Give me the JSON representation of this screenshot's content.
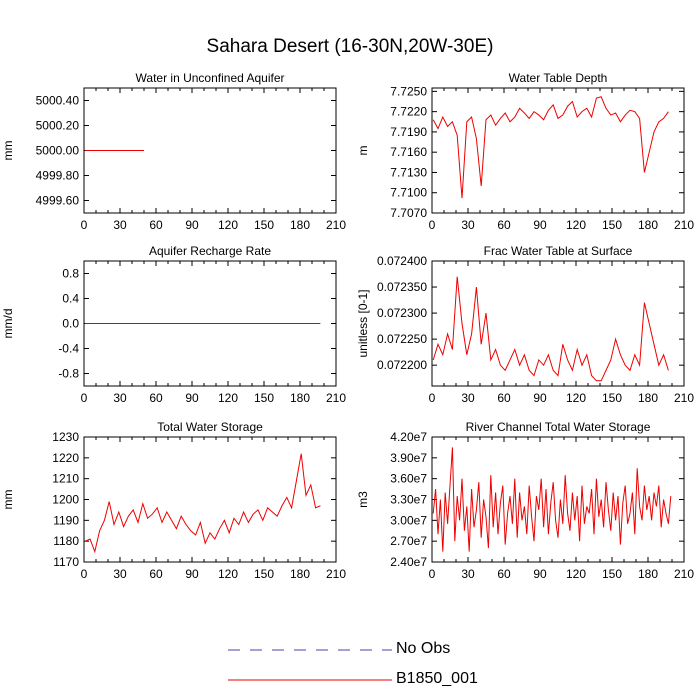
{
  "title": "Sahara Desert (16-30N,20W-30E)",
  "legend": [
    {
      "name": "No Obs",
      "color": "#4444aa",
      "dash": true
    },
    {
      "name": "B1850_001",
      "color": "#ee0000",
      "dash": false
    }
  ],
  "chart_data": [
    {
      "type": "line",
      "title": "Water in Unconfined Aquifer",
      "ylabel": "mm",
      "xlim": [
        0,
        210
      ],
      "xticks": [
        0,
        30,
        60,
        90,
        120,
        150,
        180,
        210
      ],
      "ylim": [
        4999.5,
        5000.5
      ],
      "yticks": [
        4999.6,
        4999.8,
        5000.0,
        5000.2,
        5000.4
      ],
      "ytick_labels": [
        "4999.60",
        "4999.80",
        "5000.00",
        "5000.20",
        "5000.40"
      ],
      "series": [
        {
          "color": "#ee0000",
          "x_start": 1,
          "x_step": 1,
          "values": [
            5000,
            5000,
            5000,
            5000,
            5000,
            5000,
            5000,
            5000,
            5000,
            5000,
            5000,
            5000,
            5000,
            5000,
            5000,
            5000,
            5000,
            5000,
            5000,
            5000,
            5000,
            5000,
            5000,
            5000,
            5000,
            5000,
            5000,
            5000,
            5000,
            5000,
            5000,
            5000,
            5000,
            5000,
            5000,
            5000,
            5000,
            5000,
            5000,
            5000,
            5000,
            5000,
            5000,
            5000,
            5000,
            5000,
            5000,
            5000,
            5000,
            5000
          ]
        }
      ]
    },
    {
      "type": "line",
      "title": "Water Table Depth",
      "ylabel": "m",
      "xlim": [
        0,
        210
      ],
      "xticks": [
        0,
        30,
        60,
        90,
        120,
        150,
        180,
        210
      ],
      "ylim": [
        7.707,
        7.7255
      ],
      "yticks": [
        7.707,
        7.71,
        7.713,
        7.716,
        7.719,
        7.722,
        7.725
      ],
      "ytick_labels": [
        "7.7070",
        "7.7100",
        "7.7130",
        "7.7160",
        "7.7190",
        "7.7220",
        "7.7250"
      ],
      "series": [
        {
          "color": "#ee0000",
          "x_start": 1,
          "x_step": 4,
          "values": [
            7.7208,
            7.7195,
            7.7212,
            7.7198,
            7.7205,
            7.7185,
            7.7092,
            7.7205,
            7.7212,
            7.718,
            7.711,
            7.7208,
            7.7215,
            7.72,
            7.721,
            7.7218,
            7.7205,
            7.7212,
            7.7225,
            7.7218,
            7.721,
            7.722,
            7.7215,
            7.7208,
            7.7222,
            7.723,
            7.721,
            7.7215,
            7.7228,
            7.7235,
            7.7212,
            7.722,
            7.7225,
            7.7212,
            7.724,
            7.7242,
            7.7225,
            7.7215,
            7.7218,
            7.7205,
            7.7215,
            7.7222,
            7.722,
            7.721,
            7.713,
            7.716,
            7.719,
            7.7205,
            7.721,
            7.722
          ]
        }
      ]
    },
    {
      "type": "line",
      "title": "Aquifer Recharge Rate",
      "ylabel": "mm/d",
      "xlim": [
        0,
        210
      ],
      "xticks": [
        0,
        30,
        60,
        90,
        120,
        150,
        180,
        210
      ],
      "ylim": [
        -1.0,
        1.0
      ],
      "yticks": [
        -0.8,
        -0.4,
        0.0,
        0.4,
        0.8
      ],
      "ytick_labels": [
        "-0.8",
        "-0.4",
        "0.0",
        "0.4",
        "0.8"
      ],
      "series": [
        {
          "color": "#ee0000",
          "x_start": 1,
          "x_step": 4,
          "values": [
            0,
            0,
            0,
            0,
            0,
            0,
            0,
            0,
            0,
            0,
            0,
            0,
            0,
            0,
            0,
            0,
            0,
            0,
            0,
            0,
            0,
            0,
            0,
            0,
            0,
            0,
            0,
            0,
            0,
            0,
            0,
            0,
            0,
            0,
            0,
            0,
            0,
            0,
            0,
            0,
            0,
            0,
            0,
            0,
            0,
            0,
            0,
            0,
            0,
            0
          ]
        }
      ]
    },
    {
      "type": "line",
      "title": "Frac Water Table at Surface",
      "ylabel": "unitless [0-1]",
      "xlim": [
        0,
        210
      ],
      "xticks": [
        0,
        30,
        60,
        90,
        120,
        150,
        180,
        210
      ],
      "ylim": [
        0.07216,
        0.0724
      ],
      "yticks": [
        0.0722,
        0.07225,
        0.0723,
        0.07235,
        0.0724
      ],
      "ytick_labels": [
        "0.072200",
        "0.072250",
        "0.072300",
        "0.072350",
        "0.072400"
      ],
      "series": [
        {
          "color": "#ee0000",
          "x_start": 1,
          "x_step": 4,
          "values": [
            0.07221,
            0.07224,
            0.07222,
            0.07226,
            0.07223,
            0.07237,
            0.07228,
            0.07222,
            0.07226,
            0.07235,
            0.07224,
            0.0723,
            0.07221,
            0.07223,
            0.0722,
            0.07219,
            0.07221,
            0.07223,
            0.0722,
            0.07222,
            0.07219,
            0.07218,
            0.07221,
            0.0722,
            0.07222,
            0.07219,
            0.07218,
            0.07224,
            0.07221,
            0.07219,
            0.07223,
            0.0722,
            0.07222,
            0.07218,
            0.07217,
            0.07217,
            0.07219,
            0.07221,
            0.07225,
            0.07222,
            0.0722,
            0.07219,
            0.07222,
            0.0722,
            0.07232,
            0.07228,
            0.07224,
            0.0722,
            0.07222,
            0.07219
          ]
        }
      ]
    },
    {
      "type": "line",
      "title": "Total Water Storage",
      "ylabel": "mm",
      "xlim": [
        0,
        210
      ],
      "xticks": [
        0,
        30,
        60,
        90,
        120,
        150,
        180,
        210
      ],
      "ylim": [
        1170,
        1230
      ],
      "yticks": [
        1170,
        1180,
        1190,
        1200,
        1210,
        1220,
        1230
      ],
      "ytick_labels": [
        "1170",
        "1180",
        "1190",
        "1200",
        "1210",
        "1220",
        "1230"
      ],
      "series": [
        {
          "color": "#ee0000",
          "x_start": 1,
          "x_step": 4,
          "values": [
            1180,
            1181,
            1175,
            1185,
            1190,
            1199,
            1188,
            1194,
            1187,
            1192,
            1195,
            1189,
            1198,
            1191,
            1193,
            1196,
            1189,
            1194,
            1190,
            1186,
            1192,
            1188,
            1185,
            1183,
            1189,
            1179,
            1184,
            1181,
            1186,
            1190,
            1184,
            1191,
            1188,
            1194,
            1189,
            1193,
            1195,
            1190,
            1196,
            1194,
            1192,
            1197,
            1201,
            1196,
            1209,
            1222,
            1202,
            1207,
            1196,
            1197
          ]
        }
      ]
    },
    {
      "type": "line",
      "title": "River Channel Total Water Storage",
      "ylabel": "m3",
      "xlim": [
        0,
        210
      ],
      "xticks": [
        0,
        30,
        60,
        90,
        120,
        150,
        180,
        210
      ],
      "ylim": [
        24000000,
        42000000
      ],
      "yticks": [
        24000000,
        27000000,
        30000000,
        33000000,
        36000000,
        39000000,
        42000000
      ],
      "ytick_labels": [
        "2.40e7",
        "2.70e7",
        "3.00e7",
        "3.30e7",
        "3.60e7",
        "3.90e7",
        "4.20e7"
      ],
      "series": [
        {
          "color": "#ee0000",
          "x_start": 1,
          "x_step": 2,
          "values": [
            31000000,
            34500000,
            28000000,
            33000000,
            25500000,
            34000000,
            29500000,
            35000000,
            40500000,
            27000000,
            33500000,
            30000000,
            36000000,
            28500000,
            32000000,
            25500000,
            34500000,
            29000000,
            31500000,
            35500000,
            27500000,
            33000000,
            30500000,
            26000000,
            36500000,
            29000000,
            34000000,
            28000000,
            32500000,
            35000000,
            26500000,
            31000000,
            33500000,
            29500000,
            36000000,
            27500000,
            34000000,
            30000000,
            32000000,
            28000000,
            35000000,
            30500000,
            27000000,
            33500000,
            31500000,
            36000000,
            29000000,
            34500000,
            28000000,
            32500000,
            35500000,
            30000000,
            27500000,
            33000000,
            29500000,
            36500000,
            31000000,
            28500000,
            34000000,
            30000000,
            33500000,
            27000000,
            35000000,
            29500000,
            32000000,
            31000000,
            34500000,
            28000000,
            36000000,
            30500000,
            33000000,
            29000000,
            35500000,
            31500000,
            28500000,
            34000000,
            30000000,
            33500000,
            26500000,
            32500000,
            35000000,
            29500000,
            31000000,
            34000000,
            28000000,
            37500000,
            32000000,
            30000000,
            35000000,
            31500000,
            33500000,
            30000000,
            34000000,
            32000000,
            35000000,
            29000000,
            33000000,
            31000000,
            29500000,
            33500000
          ]
        }
      ]
    }
  ]
}
